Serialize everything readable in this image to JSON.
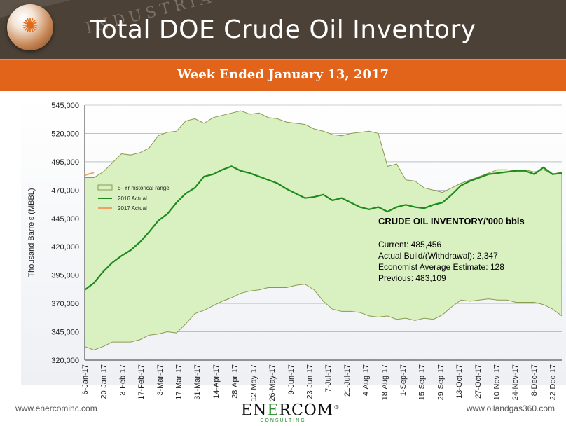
{
  "header": {
    "title": "Total DOE Crude Oil Inventory",
    "subtitle": "Week Ended January 13, 2017",
    "stripe_text": "INDUSTRIA"
  },
  "colors": {
    "header_bg": "#4b4136",
    "banner": "#e2641b",
    "range_fill": "#d9f0c0",
    "range_stroke": "#8a9a50",
    "actual_2016": "#1e8a1e",
    "actual_2017": "#f0a060"
  },
  "chart_data": {
    "type": "line",
    "ylabel": "Thousand Barrels (MBBL)",
    "ylim": [
      320000,
      545000
    ],
    "yticks": [
      320000,
      345000,
      370000,
      395000,
      420000,
      445000,
      470000,
      495000,
      520000,
      545000
    ],
    "ytick_labels": [
      "320,000",
      "345,000",
      "370,000",
      "395,000",
      "420,000",
      "445,000",
      "470,000",
      "495,000",
      "520,000",
      "545,000"
    ],
    "xtick_labels": [
      "6-Jan-17",
      "20-Jan-17",
      "3-Feb-17",
      "17-Feb-17",
      "3-Mar-17",
      "17-Mar-17",
      "31-Mar-17",
      "14-Apr-17",
      "28-Apr-17",
      "12-May-17",
      "26-May-17",
      "9-Jun-17",
      "23-Jun-17",
      "7-Jul-17",
      "21-Jul-17",
      "4-Aug-17",
      "18-Aug-17",
      "1-Sep-17",
      "15-Sep-17",
      "29-Sep-17",
      "13-Oct-17",
      "27-Oct-17",
      "10-Nov-17",
      "24-Nov-17",
      "8-Dec-17",
      "22-Dec-17"
    ],
    "range_upper": [
      481000,
      481000,
      486000,
      494000,
      502000,
      501000,
      503000,
      507000,
      518000,
      521000,
      522000,
      531000,
      533000,
      529000,
      534000,
      536000,
      538000,
      540000,
      537000,
      538000,
      534000,
      533000,
      530000,
      529000,
      528000,
      524000,
      522000,
      519000,
      518000,
      520000,
      521000,
      522000,
      520000,
      491000,
      493000,
      479000,
      478000,
      472000,
      470000,
      468000,
      472000,
      476000,
      479000,
      482000,
      485000,
      488000,
      488000,
      487000,
      488000,
      486000,
      488000,
      484000,
      486000
    ],
    "range_lower": [
      332000,
      329000,
      332000,
      336000,
      336000,
      336000,
      338000,
      342000,
      343000,
      345000,
      344000,
      352000,
      361000,
      364000,
      368000,
      372000,
      375000,
      379000,
      381000,
      382000,
      384000,
      384000,
      384000,
      386000,
      387000,
      382000,
      372000,
      365000,
      363000,
      363000,
      362000,
      359000,
      358000,
      359000,
      356000,
      357000,
      355000,
      357000,
      356000,
      360000,
      367000,
      373000,
      372000,
      373000,
      374000,
      373000,
      373000,
      371000,
      371000,
      371000,
      369000,
      365000,
      359000
    ],
    "series": [
      {
        "name": "5- Yr historical range",
        "kind": "area"
      },
      {
        "name": "2016 Actual",
        "values": [
          382000,
          388000,
          398000,
          406000,
          412000,
          417000,
          424000,
          433000,
          443000,
          449000,
          459000,
          467000,
          472000,
          482000,
          484000,
          488000,
          491000,
          487000,
          485000,
          482000,
          479000,
          476000,
          471000,
          467000,
          463000,
          464000,
          466000,
          461000,
          463000,
          459000,
          455000,
          453000,
          455000,
          451000,
          455000,
          457000,
          455000,
          454000,
          457000,
          459000,
          466000,
          474000,
          478000,
          481000,
          484000,
          485000,
          486000,
          487000,
          487000,
          484000,
          490000,
          484000,
          485000
        ]
      },
      {
        "name": "2017 Actual",
        "values": [
          483109,
          485456
        ]
      }
    ],
    "annotation": {
      "heading": "CRUDE OIL INVENTORY/'000 bbls",
      "lines": [
        "Current: 485,456",
        "Actual Build/(Withdrawal): 2,347",
        "Economist Average Estimate: 128",
        "Previous: 483,109"
      ]
    }
  },
  "footer": {
    "left": "www.enercominc.com",
    "right": "www.oilandgas360.com",
    "brand_a": "EN",
    "brand_b": "E",
    "brand_c": "RCOM",
    "brand_mark": "®",
    "brand_sub": "CONSULTING"
  }
}
